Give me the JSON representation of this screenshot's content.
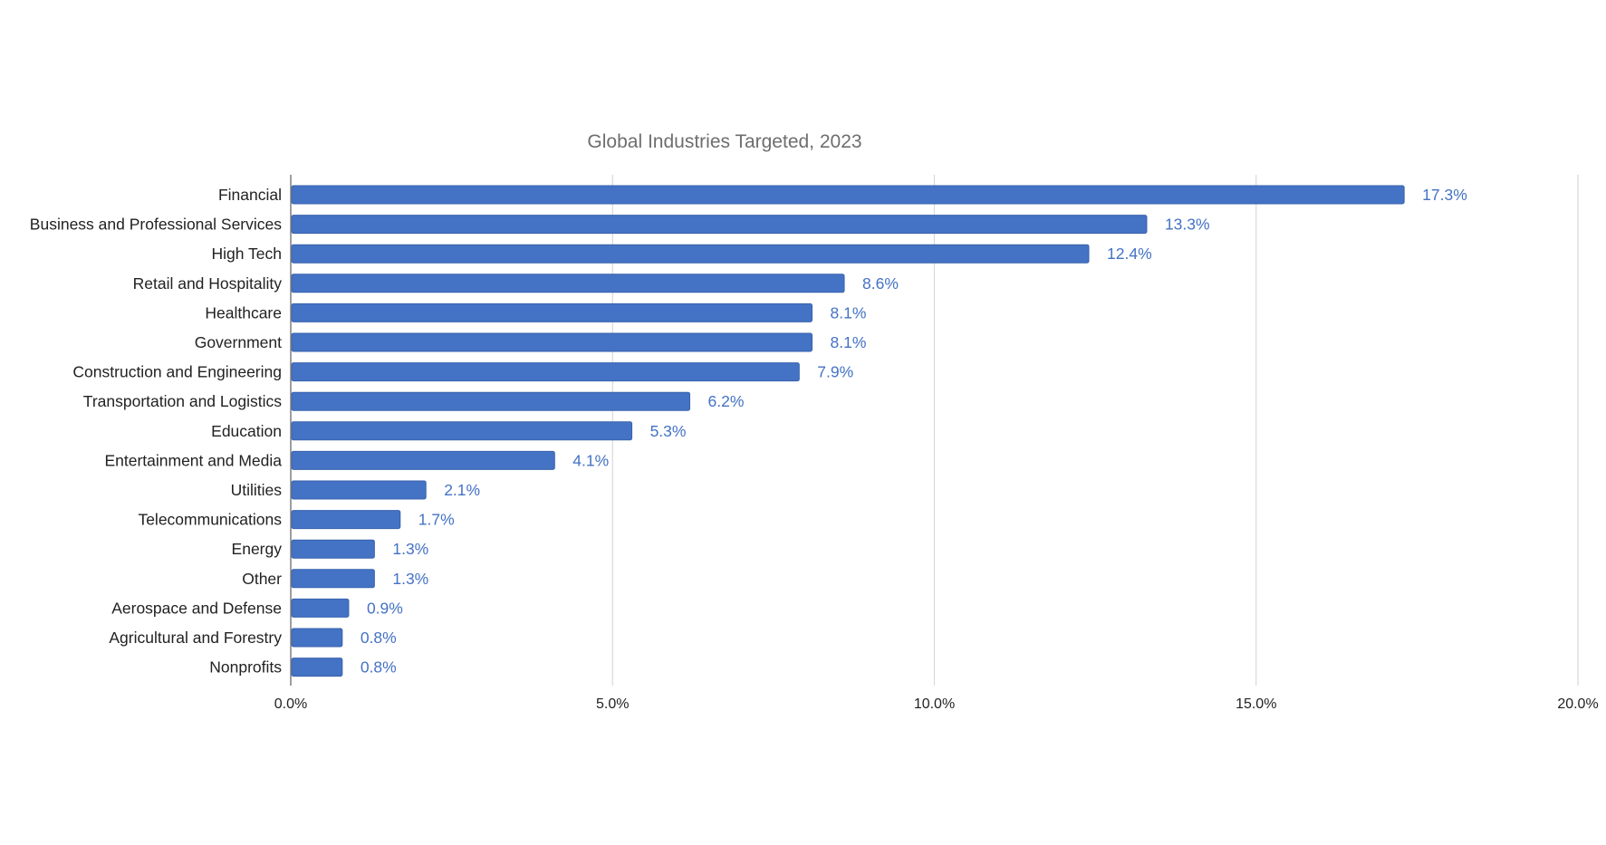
{
  "chart_data": {
    "type": "bar",
    "orientation": "horizontal",
    "title": "Global Industries Targeted, 2023",
    "xlabel": "",
    "ylabel": "",
    "categories": [
      "Financial",
      "Business and Professional Services",
      "High Tech",
      "Retail and Hospitality",
      "Healthcare",
      "Government",
      "Construction and Engineering",
      "Transportation and Logistics",
      "Education",
      "Entertainment and Media",
      "Utilities",
      "Telecommunications",
      "Energy",
      "Other",
      "Aerospace and Defense",
      "Agricultural and Forestry",
      "Nonprofits"
    ],
    "values": [
      17.3,
      13.3,
      12.4,
      8.6,
      8.1,
      8.1,
      7.9,
      6.2,
      5.3,
      4.1,
      2.1,
      1.7,
      1.3,
      1.3,
      0.9,
      0.8,
      0.8
    ],
    "value_labels": [
      "17.3%",
      "13.3%",
      "12.4%",
      "8.6%",
      "8.1%",
      "8.1%",
      "7.9%",
      "6.2%",
      "5.3%",
      "4.1%",
      "2.1%",
      "1.7%",
      "1.3%",
      "1.3%",
      "0.9%",
      "0.8%",
      "0.8%"
    ],
    "xlim": [
      0,
      20
    ],
    "x_ticks": [
      0,
      5,
      10,
      15,
      20
    ],
    "x_tick_labels": [
      "0.0%",
      "5.0%",
      "10.0%",
      "15.0%",
      "20.0%"
    ],
    "grid": "vertical",
    "legend": "none",
    "colors": {
      "bar": "#4472c4",
      "bar_edge": "#3a63ad",
      "value_label": "#4472c4",
      "grid": "#d9d9d9",
      "axis": "#7f7f7f"
    }
  }
}
